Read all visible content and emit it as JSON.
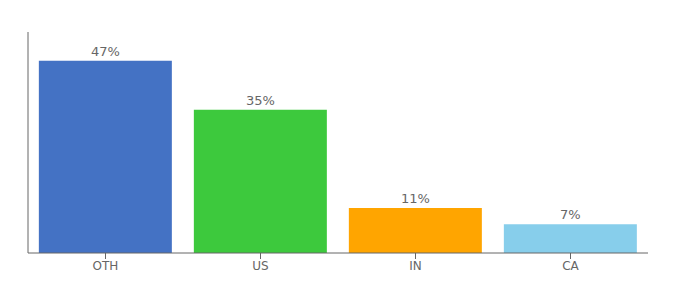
{
  "chart_data": {
    "type": "bar",
    "categories": [
      "OTH",
      "US",
      "IN",
      "CA"
    ],
    "values": [
      47,
      35,
      11,
      7
    ],
    "value_labels": [
      "47%",
      "35%",
      "11%",
      "7%"
    ],
    "colors": [
      "#4472C4",
      "#3DC93D",
      "#FFA500",
      "#87CEEB"
    ],
    "ylim": [
      0,
      54
    ],
    "data_labels": true,
    "tick_labels": "x",
    "grid": false
  }
}
